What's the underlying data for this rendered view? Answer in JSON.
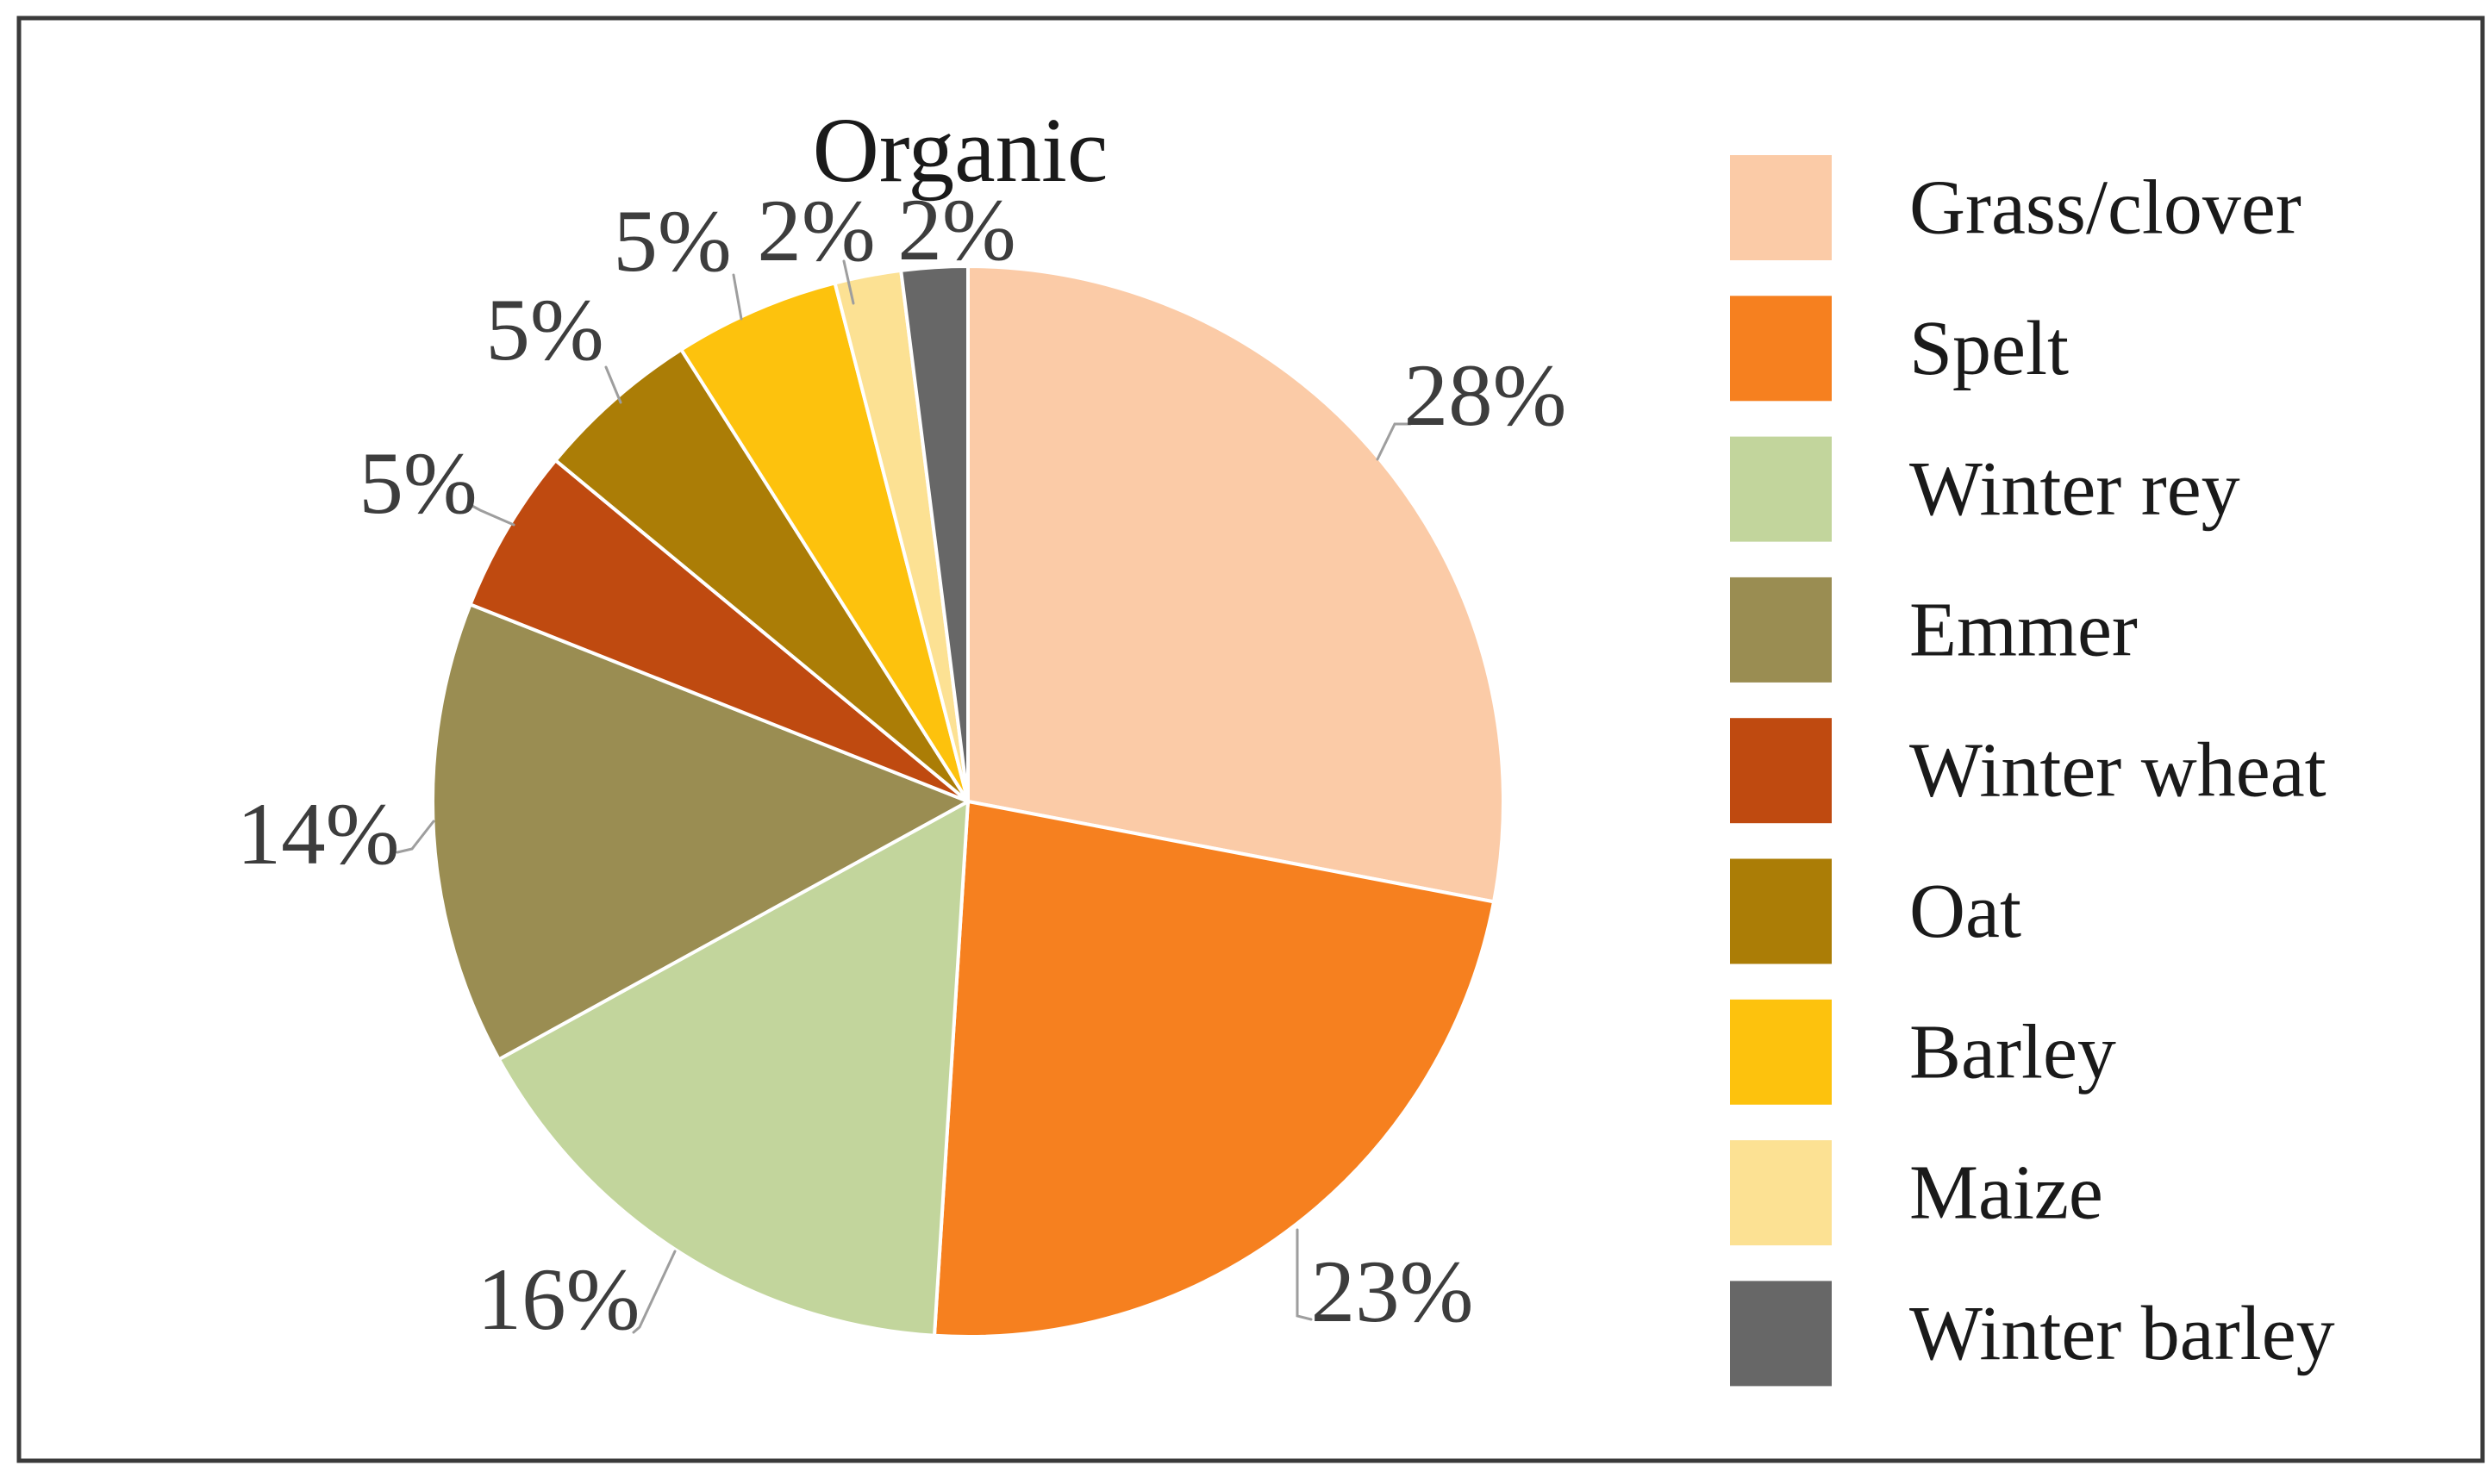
{
  "frame": {
    "border_color": "#3a3a3a",
    "background_color": "#ffffff"
  },
  "chart_data": {
    "type": "pie",
    "title": "Organic",
    "categories": [
      "Grass/clover",
      "Spelt",
      "Winter rey",
      "Emmer",
      "Winter wheat",
      "Oat",
      "Barley",
      "Maize",
      "Winter barley"
    ],
    "values": [
      28,
      23,
      16,
      14,
      5,
      5,
      5,
      2,
      2
    ],
    "value_labels": [
      "28%",
      "23%",
      "16%",
      "14%",
      "5%",
      "5%",
      "5%",
      "2%",
      "2%"
    ],
    "colors": [
      "#FBCBA7",
      "#F6801F",
      "#C2D59C",
      "#9A8D52",
      "#BF4A10",
      "#AB7D06",
      "#FDC20D",
      "#FCE193",
      "#676767"
    ],
    "start_angle_deg": 0,
    "direction": "clockwise",
    "slice_border_color": "#FFFFFF",
    "label_color": "#3D3D3D",
    "leader_line_color": "#9E9E9E",
    "title_color": "#1A1A1A",
    "legend_text_color": "#1A1A1A",
    "legend_position": "right",
    "grid": "off"
  }
}
